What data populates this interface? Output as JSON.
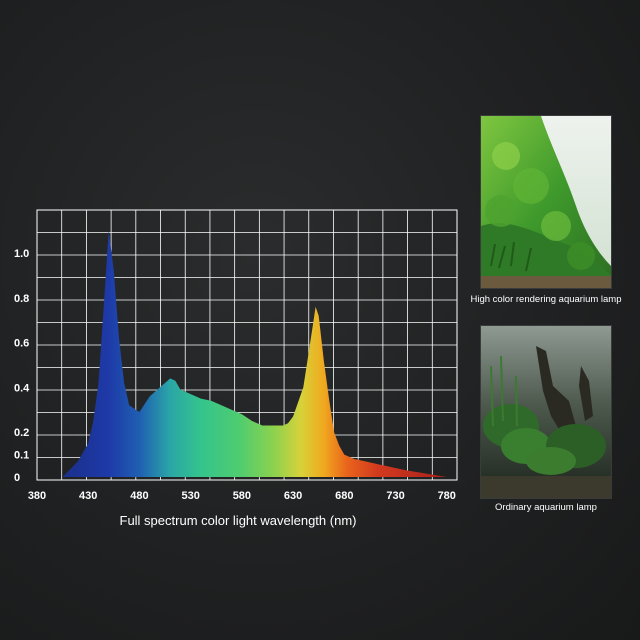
{
  "chart_data": {
    "type": "area",
    "xlabel": "Full spectrum color light wavelength (nm)",
    "ylabel": "",
    "xlim": [
      380,
      790
    ],
    "ylim": [
      0,
      1.1
    ],
    "x_ticks": [
      380,
      430,
      480,
      530,
      580,
      630,
      680,
      730,
      780
    ],
    "y_ticks": [
      0,
      0.1,
      0.2,
      0.4,
      0.6,
      0.8,
      1.0
    ],
    "y_tick_labels": [
      "0",
      "0.1",
      "0.2",
      "0.4",
      "0.6",
      "0.8",
      "1.0"
    ],
    "grid": true,
    "series": [
      {
        "x": [
          405,
          420,
          430,
          435,
          440,
          445,
          450,
          455,
          460,
          465,
          470,
          480,
          490,
          500,
          510,
          515,
          520,
          530,
          540,
          550,
          560,
          570,
          580,
          590,
          600,
          610,
          620,
          625,
          630,
          640,
          645,
          650,
          652,
          655,
          660,
          665,
          670,
          675,
          680,
          690,
          700,
          720,
          740,
          760,
          780
        ],
        "y": [
          0.0,
          0.07,
          0.15,
          0.25,
          0.42,
          0.75,
          1.1,
          0.92,
          0.62,
          0.42,
          0.32,
          0.29,
          0.36,
          0.4,
          0.44,
          0.43,
          0.39,
          0.37,
          0.35,
          0.34,
          0.32,
          0.3,
          0.28,
          0.25,
          0.23,
          0.23,
          0.23,
          0.24,
          0.27,
          0.4,
          0.55,
          0.7,
          0.76,
          0.72,
          0.52,
          0.35,
          0.2,
          0.14,
          0.1,
          0.08,
          0.07,
          0.05,
          0.03,
          0.015,
          0.0
        ]
      }
    ]
  },
  "photos": [
    {
      "caption": "High color rendering aquarium lamp"
    },
    {
      "caption": "Ordinary aquarium lamp"
    }
  ]
}
